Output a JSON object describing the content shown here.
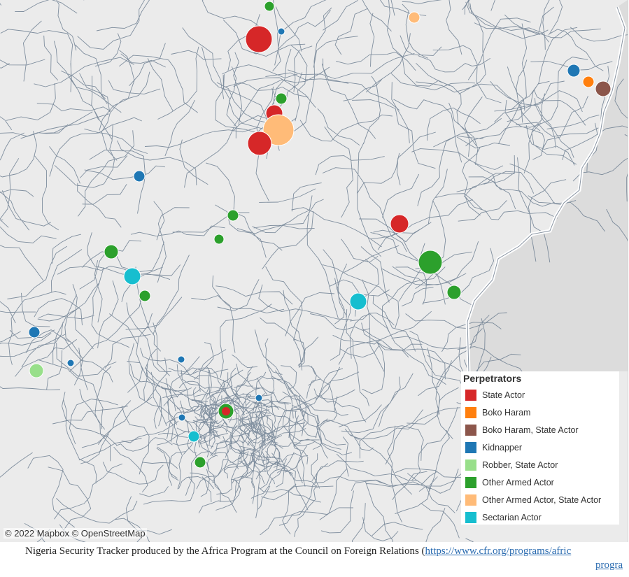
{
  "map": {
    "attribution": "© 2022 Mapbox  © OpenStreetMap",
    "colors": {
      "land": "#ebebeb",
      "foreign_land": "#dcdcdc",
      "boundary": "#5b6f84",
      "border_glow": "#ffffff"
    }
  },
  "legend": {
    "title": "Perpetrators",
    "items": [
      {
        "label": "State Actor",
        "color": "#d62728"
      },
      {
        "label": "Boko Haram",
        "color": "#ff7f0e"
      },
      {
        "label": "Boko Haram, State Actor",
        "color": "#8c564b"
      },
      {
        "label": "Kidnapper",
        "color": "#1f77b4"
      },
      {
        "label": "Robber, State Actor",
        "color": "#98df8a"
      },
      {
        "label": "Other Armed Actor",
        "color": "#2ca02c"
      },
      {
        "label": "Other Armed Actor, State Actor",
        "color": "#ffbb78"
      },
      {
        "label": "Sectarian Actor",
        "color": "#17becf"
      }
    ]
  },
  "footer": {
    "text": "Nigeria Security Tracker produced by the Africa Program at the Council on Foreign Relations (",
    "link": "https://www.cfr.org/programs/africa-program",
    "link_line1": "https://www.cfr.org/programs/afric",
    "link_line2": "progra"
  }
}
